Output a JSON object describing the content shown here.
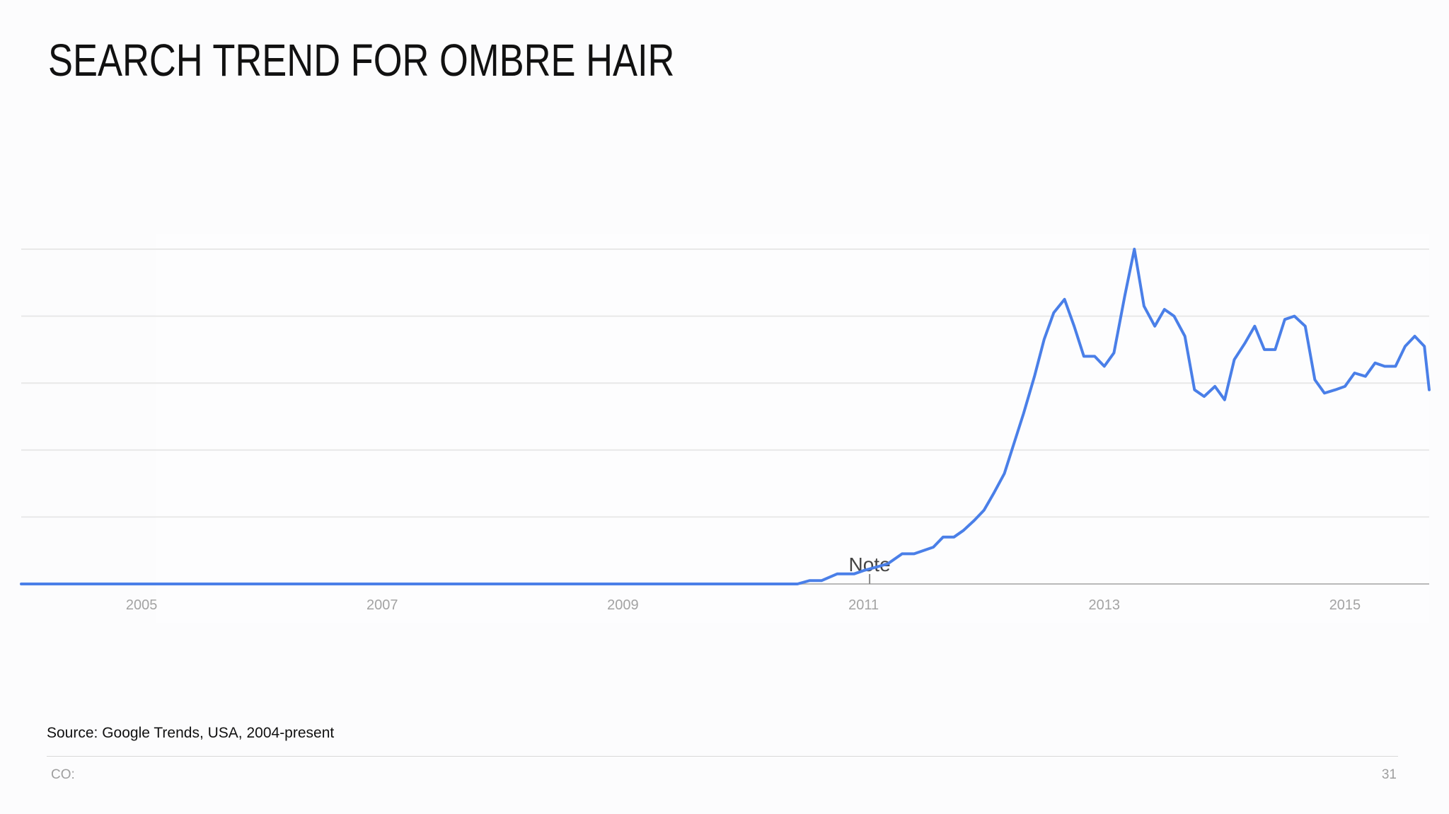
{
  "slide": {
    "title": "SEARCH TREND FOR OMBRE HAIR",
    "source": "Source: Google Trends, USA, 2004-present",
    "footer_left": "CO:",
    "page_number": "31"
  },
  "chart_data": {
    "type": "line",
    "title": "",
    "xlabel": "",
    "ylabel": "",
    "xlim": [
      2004.0,
      2015.7
    ],
    "ylim": [
      0,
      100
    ],
    "grid": true,
    "x_ticks": [
      "2005",
      "2007",
      "2009",
      "2011",
      "2013",
      "2015"
    ],
    "x_tick_values": [
      2005,
      2007,
      2009,
      2011,
      2013,
      2015
    ],
    "annotation": {
      "text": "Note",
      "x": 2011.05
    },
    "series": [
      {
        "color": "#4a7fe8",
        "points": [
          [
            2004.0,
            0
          ],
          [
            2010.45,
            0
          ],
          [
            2010.55,
            1
          ],
          [
            2010.65,
            1
          ],
          [
            2010.78,
            3
          ],
          [
            2010.92,
            3
          ],
          [
            2011.0,
            4
          ],
          [
            2011.1,
            5
          ],
          [
            2011.2,
            6
          ],
          [
            2011.32,
            9
          ],
          [
            2011.42,
            9
          ],
          [
            2011.58,
            11
          ],
          [
            2011.66,
            14
          ],
          [
            2011.75,
            14
          ],
          [
            2011.83,
            16
          ],
          [
            2011.92,
            19
          ],
          [
            2012.0,
            22
          ],
          [
            2012.08,
            27
          ],
          [
            2012.17,
            33
          ],
          [
            2012.25,
            42
          ],
          [
            2012.33,
            51
          ],
          [
            2012.42,
            62
          ],
          [
            2012.5,
            73
          ],
          [
            2012.58,
            81
          ],
          [
            2012.67,
            85
          ],
          [
            2012.75,
            77
          ],
          [
            2012.83,
            68
          ],
          [
            2012.92,
            68
          ],
          [
            2013.0,
            65
          ],
          [
            2013.08,
            69
          ],
          [
            2013.17,
            86
          ],
          [
            2013.25,
            100
          ],
          [
            2013.33,
            83
          ],
          [
            2013.42,
            77
          ],
          [
            2013.5,
            82
          ],
          [
            2013.58,
            80
          ],
          [
            2013.67,
            74
          ],
          [
            2013.75,
            58
          ],
          [
            2013.83,
            56
          ],
          [
            2013.92,
            59
          ],
          [
            2014.0,
            55
          ],
          [
            2014.08,
            67
          ],
          [
            2014.17,
            72
          ],
          [
            2014.25,
            77
          ],
          [
            2014.33,
            70
          ],
          [
            2014.42,
            70
          ],
          [
            2014.5,
            79
          ],
          [
            2014.58,
            80
          ],
          [
            2014.67,
            77
          ],
          [
            2014.75,
            61
          ],
          [
            2014.83,
            57
          ],
          [
            2014.92,
            58
          ],
          [
            2015.0,
            59
          ],
          [
            2015.08,
            63
          ],
          [
            2015.17,
            62
          ],
          [
            2015.25,
            66
          ],
          [
            2015.33,
            65
          ],
          [
            2015.42,
            65
          ],
          [
            2015.5,
            71
          ],
          [
            2015.58,
            74
          ],
          [
            2015.66,
            71
          ],
          [
            2015.7,
            58
          ]
        ]
      }
    ]
  }
}
